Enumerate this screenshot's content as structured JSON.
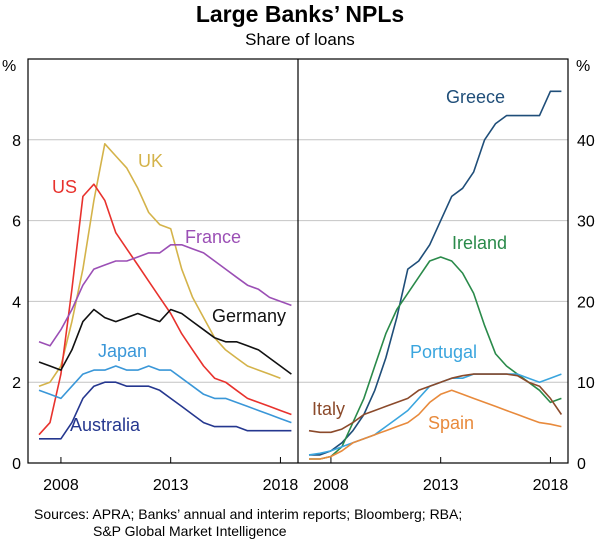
{
  "chart_title": "Large Banks’ NPLs",
  "chart_subtitle": "Share of loans",
  "source_lines": [
    "Sources: APRA; Banks’ annual and interim reports; Bloomberg; RBA;",
    "S&P Global Market Intelligence"
  ],
  "colors": {
    "UK": "#d4b34a",
    "US": "#e8322d",
    "France": "#9b4fb5",
    "Germany": "#111111",
    "Japan": "#3a97d8",
    "Australia": "#25378f",
    "Greece": "#1f4e79",
    "Ireland": "#2a8a4a",
    "Portugal": "#3aa5de",
    "Italy": "#8b4a2b",
    "Spain": "#e88a3c"
  },
  "chart_data": [
    {
      "type": "line",
      "panel": "left",
      "ylabel": "%",
      "ylim": [
        0,
        10
      ],
      "yticks": [
        0,
        2,
        4,
        6,
        8
      ],
      "xlim": [
        2006.5,
        2018.8
      ],
      "xticks": [
        2008,
        2013,
        2018
      ],
      "series": [
        {
          "name": "UK",
          "x": [
            2007.0,
            2007.5,
            2008.0,
            2008.5,
            2009.0,
            2009.5,
            2010.0,
            2010.5,
            2011.0,
            2011.5,
            2012.0,
            2012.5,
            2013.0,
            2013.5,
            2014.0,
            2014.5,
            2015.0,
            2015.5,
            2016.0,
            2016.5,
            2017.0,
            2017.5,
            2018.0
          ],
          "values": [
            1.9,
            2.0,
            2.4,
            3.5,
            4.8,
            6.5,
            7.9,
            7.6,
            7.3,
            6.8,
            6.2,
            5.9,
            5.8,
            4.8,
            4.1,
            3.6,
            3.1,
            2.8,
            2.6,
            2.4,
            2.3,
            2.2,
            2.1
          ]
        },
        {
          "name": "US",
          "x": [
            2007.0,
            2007.5,
            2008.0,
            2008.5,
            2009.0,
            2009.5,
            2010.0,
            2010.5,
            2011.0,
            2011.5,
            2012.0,
            2012.5,
            2013.0,
            2013.5,
            2014.0,
            2014.5,
            2015.0,
            2015.5,
            2016.0,
            2016.5,
            2017.0,
            2017.5,
            2018.0,
            2018.5
          ],
          "values": [
            0.7,
            1.0,
            2.2,
            4.3,
            6.6,
            6.9,
            6.5,
            5.7,
            5.3,
            4.9,
            4.5,
            4.1,
            3.7,
            3.2,
            2.8,
            2.4,
            2.1,
            2.0,
            1.8,
            1.6,
            1.5,
            1.4,
            1.3,
            1.2
          ]
        },
        {
          "name": "France",
          "x": [
            2007.0,
            2007.5,
            2008.0,
            2008.5,
            2009.0,
            2009.5,
            2010.0,
            2010.5,
            2011.0,
            2011.5,
            2012.0,
            2012.5,
            2013.0,
            2013.5,
            2014.0,
            2014.5,
            2015.0,
            2015.5,
            2016.0,
            2016.5,
            2017.0,
            2017.5,
            2018.0,
            2018.5
          ],
          "values": [
            3.0,
            2.9,
            3.3,
            3.8,
            4.4,
            4.8,
            4.9,
            5.0,
            5.0,
            5.1,
            5.2,
            5.2,
            5.4,
            5.4,
            5.3,
            5.2,
            5.0,
            4.8,
            4.6,
            4.4,
            4.3,
            4.1,
            4.0,
            3.9
          ]
        },
        {
          "name": "Germany",
          "x": [
            2007.0,
            2007.5,
            2008.0,
            2008.5,
            2009.0,
            2009.5,
            2010.0,
            2010.5,
            2011.0,
            2011.5,
            2012.0,
            2012.5,
            2013.0,
            2013.5,
            2014.0,
            2014.5,
            2015.0,
            2015.5,
            2016.0,
            2016.5,
            2017.0,
            2017.5,
            2018.0,
            2018.5
          ],
          "values": [
            2.5,
            2.4,
            2.3,
            2.8,
            3.5,
            3.8,
            3.6,
            3.5,
            3.6,
            3.7,
            3.6,
            3.5,
            3.8,
            3.7,
            3.5,
            3.3,
            3.1,
            3.0,
            3.0,
            2.9,
            2.8,
            2.6,
            2.4,
            2.2
          ]
        },
        {
          "name": "Japan",
          "x": [
            2007.0,
            2007.5,
            2008.0,
            2008.5,
            2009.0,
            2009.5,
            2010.0,
            2010.5,
            2011.0,
            2011.5,
            2012.0,
            2012.5,
            2013.0,
            2013.5,
            2014.0,
            2014.5,
            2015.0,
            2015.5,
            2016.0,
            2016.5,
            2017.0,
            2017.5,
            2018.0,
            2018.5
          ],
          "values": [
            1.8,
            1.7,
            1.6,
            1.9,
            2.2,
            2.3,
            2.3,
            2.4,
            2.3,
            2.3,
            2.4,
            2.3,
            2.3,
            2.1,
            1.9,
            1.7,
            1.6,
            1.6,
            1.5,
            1.4,
            1.3,
            1.2,
            1.1,
            1.0
          ]
        },
        {
          "name": "Australia",
          "x": [
            2007.0,
            2007.5,
            2008.0,
            2008.5,
            2009.0,
            2009.5,
            2010.0,
            2010.5,
            2011.0,
            2011.5,
            2012.0,
            2012.5,
            2013.0,
            2013.5,
            2014.0,
            2014.5,
            2015.0,
            2015.5,
            2016.0,
            2016.5,
            2017.0,
            2017.5,
            2018.0,
            2018.5
          ],
          "values": [
            0.6,
            0.6,
            0.6,
            1.0,
            1.6,
            1.9,
            2.0,
            2.0,
            1.9,
            1.9,
            1.9,
            1.8,
            1.6,
            1.4,
            1.2,
            1.0,
            0.9,
            0.9,
            0.9,
            0.8,
            0.8,
            0.8,
            0.8,
            0.8
          ]
        }
      ]
    },
    {
      "type": "line",
      "panel": "right",
      "ylabel": "%",
      "ylim": [
        0,
        50
      ],
      "yticks": [
        0,
        10,
        20,
        30,
        40
      ],
      "xlim": [
        2006.5,
        2018.8
      ],
      "xticks": [
        2008,
        2013,
        2018
      ],
      "series": [
        {
          "name": "Greece",
          "x": [
            2007.0,
            2007.5,
            2008.0,
            2008.5,
            2009.0,
            2009.5,
            2010.0,
            2010.5,
            2011.0,
            2011.5,
            2012.0,
            2012.5,
            2013.0,
            2013.5,
            2014.0,
            2014.5,
            2015.0,
            2015.5,
            2016.0,
            2016.5,
            2017.0,
            2017.5,
            2018.0,
            2018.5
          ],
          "values": [
            1.0,
            1.0,
            1.5,
            2.5,
            4.0,
            6.0,
            9.0,
            13.0,
            18.0,
            24.0,
            25.0,
            27.0,
            30.0,
            33.0,
            34.0,
            36.0,
            40.0,
            42.0,
            43.0,
            43.0,
            43.0,
            43.0,
            46.0,
            46.0
          ]
        },
        {
          "name": "Ireland",
          "x": [
            2007.0,
            2007.5,
            2008.0,
            2008.5,
            2009.0,
            2009.5,
            2010.0,
            2010.5,
            2011.0,
            2011.5,
            2012.0,
            2012.5,
            2013.0,
            2013.5,
            2014.0,
            2014.5,
            2015.0,
            2015.5,
            2016.0,
            2016.5,
            2017.0,
            2017.5,
            2018.0,
            2018.5
          ],
          "values": [
            0.5,
            0.5,
            0.8,
            2.0,
            5.0,
            8.0,
            12.0,
            16.0,
            19.0,
            21.0,
            23.0,
            25.0,
            25.5,
            25.0,
            23.5,
            21.0,
            17.0,
            13.5,
            12.0,
            11.0,
            10.0,
            9.0,
            7.5,
            8.0
          ]
        },
        {
          "name": "Portugal",
          "x": [
            2007.0,
            2007.5,
            2008.0,
            2008.5,
            2009.0,
            2009.5,
            2010.0,
            2010.5,
            2011.0,
            2011.5,
            2012.0,
            2012.5,
            2013.0,
            2013.5,
            2014.0,
            2014.5,
            2015.0,
            2015.5,
            2016.0,
            2016.5,
            2017.0,
            2017.5,
            2018.0,
            2018.5
          ],
          "values": [
            1.0,
            1.2,
            1.5,
            2.0,
            2.5,
            3.0,
            3.5,
            4.5,
            5.5,
            6.5,
            8.0,
            9.5,
            10.0,
            10.5,
            10.5,
            11.0,
            11.0,
            11.0,
            11.0,
            11.0,
            10.5,
            10.0,
            10.5,
            11.0
          ]
        },
        {
          "name": "Italy",
          "x": [
            2007.0,
            2007.5,
            2008.0,
            2008.5,
            2009.0,
            2009.5,
            2010.0,
            2010.5,
            2011.0,
            2011.5,
            2012.0,
            2012.5,
            2013.0,
            2013.5,
            2014.0,
            2014.5,
            2015.0,
            2015.5,
            2016.0,
            2016.5,
            2017.0,
            2017.5,
            2018.0,
            2018.5
          ],
          "values": [
            4.0,
            3.8,
            3.8,
            4.2,
            5.0,
            6.0,
            6.5,
            7.0,
            7.5,
            8.0,
            9.0,
            9.5,
            10.0,
            10.5,
            10.8,
            11.0,
            11.0,
            11.0,
            11.0,
            10.8,
            10.0,
            9.5,
            8.0,
            6.0
          ]
        },
        {
          "name": "Spain",
          "x": [
            2007.0,
            2007.5,
            2008.0,
            2008.5,
            2009.0,
            2009.5,
            2010.0,
            2010.5,
            2011.0,
            2011.5,
            2012.0,
            2012.5,
            2013.0,
            2013.5,
            2014.0,
            2014.5,
            2015.0,
            2015.5,
            2016.0,
            2016.5,
            2017.0,
            2017.5,
            2018.0,
            2018.5
          ],
          "values": [
            0.5,
            0.5,
            0.8,
            1.5,
            2.5,
            3.0,
            3.5,
            4.0,
            4.5,
            5.0,
            6.0,
            7.5,
            8.5,
            9.0,
            8.5,
            8.0,
            7.5,
            7.0,
            6.5,
            6.0,
            5.5,
            5.0,
            4.8,
            4.5
          ]
        }
      ]
    }
  ]
}
